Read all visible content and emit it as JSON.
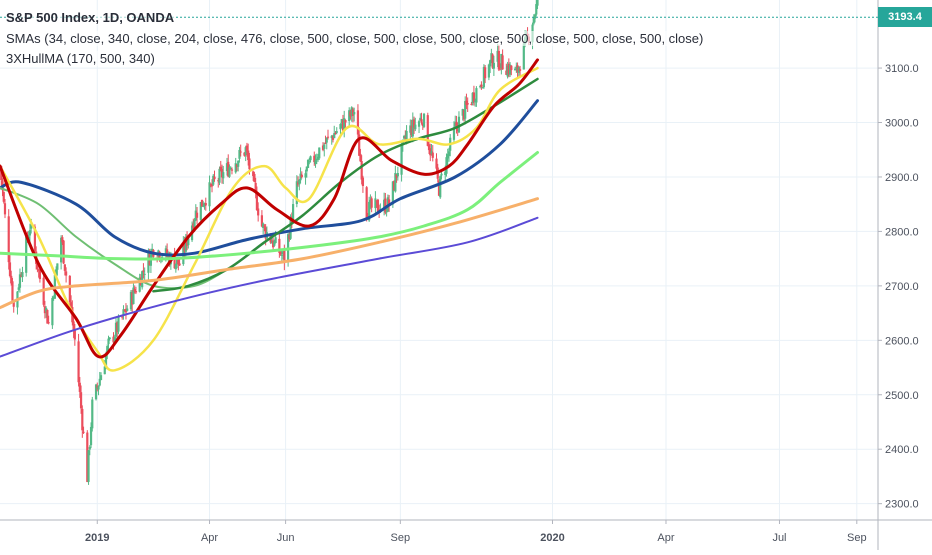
{
  "legend": {
    "title": "S&P 500 Index, 1D, OANDA",
    "smas": "SMAs (34, close, 340, close, 204, close, 476, close, 500, close, 500, close, 500, close, 500, close, 500, close, 500, close)",
    "hull": "3XHullMA (170, 500, 340)"
  },
  "last_price": "3193.4",
  "colors": {
    "up": "#53b987",
    "down": "#eb4d5c",
    "last_price_bg": "#26a69a",
    "grid": "#e9f1f7",
    "axis_text": "#4c525e"
  },
  "chart_data": {
    "type": "candlestick",
    "x_axis": {
      "start": "2018-10-15",
      "end": "2020-09-18",
      "tick_labels": [
        {
          "label": "2019",
          "date": "2019-01-01"
        },
        {
          "label": "Apr",
          "date": "2019-04-01"
        },
        {
          "label": "Jun",
          "date": "2019-06-01"
        },
        {
          "label": "Sep",
          "date": "2019-09-01"
        },
        {
          "label": "2020",
          "date": "2020-01-01"
        },
        {
          "label": "Apr",
          "date": "2020-04-01"
        },
        {
          "label": "Jul",
          "date": "2020-07-01"
        },
        {
          "label": "Sep",
          "date": "2020-09-01"
        }
      ]
    },
    "y_axis": {
      "range": [
        2270,
        3225
      ],
      "ticks": [
        2300,
        2400,
        2500,
        2600,
        2700,
        2800,
        2900,
        3000,
        3100
      ],
      "tick_labels": [
        "2300.0",
        "2400.0",
        "2500.0",
        "2600.0",
        "2700.0",
        "2800.0",
        "2900.0",
        "3000.0",
        "3100.0"
      ]
    },
    "grid": true,
    "last_price": 3193.4,
    "price_path": [
      [
        "2018-10-15",
        2920
      ],
      [
        "2018-10-26",
        2660
      ],
      [
        "2018-11-08",
        2810
      ],
      [
        "2018-11-23",
        2630
      ],
      [
        "2018-12-03",
        2790
      ],
      [
        "2018-12-14",
        2600
      ],
      [
        "2018-12-24",
        2350
      ],
      [
        "2018-12-28",
        2480
      ],
      [
        "2019-01-10",
        2590
      ],
      [
        "2019-01-25",
        2660
      ],
      [
        "2019-02-15",
        2770
      ],
      [
        "2019-03-08",
        2740
      ],
      [
        "2019-03-20",
        2830
      ],
      [
        "2019-04-05",
        2890
      ],
      [
        "2019-04-30",
        2950
      ],
      [
        "2019-05-13",
        2810
      ],
      [
        "2019-05-31",
        2750
      ],
      [
        "2019-06-10",
        2880
      ],
      [
        "2019-06-28",
        2950
      ],
      [
        "2019-07-26",
        3020
      ],
      [
        "2019-08-05",
        2840
      ],
      [
        "2019-08-23",
        2850
      ],
      [
        "2019-09-06",
        2980
      ],
      [
        "2019-09-19",
        3010
      ],
      [
        "2019-10-02",
        2880
      ],
      [
        "2019-10-15",
        2990
      ],
      [
        "2019-11-01",
        3060
      ],
      [
        "2019-11-15",
        3120
      ],
      [
        "2019-12-03",
        3090
      ],
      [
        "2019-12-10",
        3140
      ],
      [
        "2019-12-20",
        3220
      ]
    ],
    "series": [
      {
        "color": "#1f4e9c",
        "width": 3,
        "points": [
          [
            "2018-10-15",
            2880
          ],
          [
            "2018-11-01",
            2890
          ],
          [
            "2018-12-15",
            2850
          ],
          [
            "2019-01-15",
            2790
          ],
          [
            "2019-02-15",
            2760
          ],
          [
            "2019-03-20",
            2760
          ],
          [
            "2019-05-01",
            2785
          ],
          [
            "2019-06-15",
            2805
          ],
          [
            "2019-08-01",
            2820
          ],
          [
            "2019-09-01",
            2860
          ],
          [
            "2019-10-15",
            2900
          ],
          [
            "2019-11-20",
            2960
          ],
          [
            "2019-12-20",
            3040
          ]
        ]
      },
      {
        "color": "#6fbf73",
        "width": 2,
        "points": [
          [
            "2018-10-15",
            2880
          ],
          [
            "2018-11-15",
            2850
          ],
          [
            "2018-12-15",
            2790
          ],
          [
            "2019-01-15",
            2740
          ],
          [
            "2019-02-15",
            2700
          ],
          [
            "2019-03-20",
            2700
          ],
          [
            "2019-04-15",
            2730
          ]
        ]
      },
      {
        "color": "#2e8b3e",
        "width": 2.5,
        "points": [
          [
            "2019-02-15",
            2690
          ],
          [
            "2019-03-15",
            2700
          ],
          [
            "2019-04-15",
            2730
          ],
          [
            "2019-05-15",
            2780
          ],
          [
            "2019-06-15",
            2830
          ],
          [
            "2019-07-15",
            2890
          ],
          [
            "2019-08-15",
            2940
          ],
          [
            "2019-09-15",
            2970
          ],
          [
            "2019-10-15",
            2990
          ],
          [
            "2019-11-15",
            3030
          ],
          [
            "2019-12-20",
            3080
          ]
        ]
      },
      {
        "color": "#f6e34a",
        "width": 2.5,
        "points": [
          [
            "2018-10-15",
            2920
          ],
          [
            "2018-11-15",
            2790
          ],
          [
            "2018-12-10",
            2660
          ],
          [
            "2019-01-01",
            2580
          ],
          [
            "2019-01-15",
            2545
          ],
          [
            "2019-02-15",
            2600
          ],
          [
            "2019-03-20",
            2740
          ],
          [
            "2019-04-20",
            2880
          ],
          [
            "2019-05-15",
            2920
          ],
          [
            "2019-06-01",
            2880
          ],
          [
            "2019-06-20",
            2860
          ],
          [
            "2019-07-20",
            2990
          ],
          [
            "2019-08-15",
            2960
          ],
          [
            "2019-09-15",
            2970
          ],
          [
            "2019-10-10",
            2960
          ],
          [
            "2019-11-01",
            2990
          ],
          [
            "2019-11-20",
            3060
          ],
          [
            "2019-12-20",
            3100
          ]
        ]
      },
      {
        "color": "#c00000",
        "width": 3,
        "points": [
          [
            "2018-10-15",
            2920
          ],
          [
            "2018-11-15",
            2740
          ],
          [
            "2018-12-15",
            2640
          ],
          [
            "2019-01-02",
            2570
          ],
          [
            "2019-01-20",
            2610
          ],
          [
            "2019-02-15",
            2700
          ],
          [
            "2019-03-15",
            2790
          ],
          [
            "2019-04-10",
            2850
          ],
          [
            "2019-05-01",
            2880
          ],
          [
            "2019-05-25",
            2840
          ],
          [
            "2019-06-20",
            2810
          ],
          [
            "2019-07-10",
            2860
          ],
          [
            "2019-07-30",
            2970
          ],
          [
            "2019-08-25",
            2930
          ],
          [
            "2019-09-20",
            2905
          ],
          [
            "2019-10-10",
            2920
          ],
          [
            "2019-10-25",
            2960
          ],
          [
            "2019-11-15",
            3030
          ],
          [
            "2019-12-05",
            3070
          ],
          [
            "2019-12-20",
            3115
          ]
        ]
      },
      {
        "color": "#7cf07c",
        "width": 3,
        "points": [
          [
            "2018-10-15",
            2760
          ],
          [
            "2018-12-01",
            2755
          ],
          [
            "2019-01-15",
            2750
          ],
          [
            "2019-03-01",
            2750
          ],
          [
            "2019-05-01",
            2760
          ],
          [
            "2019-07-01",
            2775
          ],
          [
            "2019-08-15",
            2790
          ],
          [
            "2019-09-20",
            2810
          ],
          [
            "2019-10-25",
            2840
          ],
          [
            "2019-11-20",
            2890
          ],
          [
            "2019-12-20",
            2945
          ]
        ]
      },
      {
        "color": "#f7b06a",
        "width": 3,
        "points": [
          [
            "2018-10-15",
            2660
          ],
          [
            "2018-11-15",
            2690
          ],
          [
            "2018-12-15",
            2700
          ],
          [
            "2019-02-15",
            2710
          ],
          [
            "2019-04-15",
            2730
          ],
          [
            "2019-06-15",
            2750
          ],
          [
            "2019-08-15",
            2780
          ],
          [
            "2019-10-15",
            2815
          ],
          [
            "2019-12-20",
            2860
          ]
        ]
      },
      {
        "color": "#5b4bd6",
        "width": 2,
        "points": [
          [
            "2018-10-15",
            2570
          ],
          [
            "2018-12-15",
            2620
          ],
          [
            "2019-03-01",
            2670
          ],
          [
            "2019-05-15",
            2710
          ],
          [
            "2019-08-15",
            2750
          ],
          [
            "2019-10-25",
            2780
          ],
          [
            "2019-12-20",
            2825
          ]
        ]
      }
    ]
  }
}
